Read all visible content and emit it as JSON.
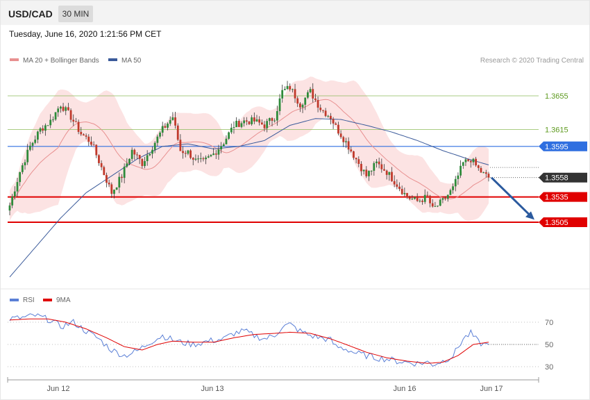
{
  "header": {
    "pair": "USD/CAD",
    "timeframe": "30 MIN",
    "datetime": "Tuesday, June 16, 2020 1:21:56 PM CET"
  },
  "legend": {
    "ma20_label": "MA 20 + Bollinger Bands",
    "ma50_label": "MA 50",
    "credit": "Research © 2020 Trading Central",
    "rsi_label": "RSI",
    "rsi_ma_label": "9MA"
  },
  "colors": {
    "bull": "#2e8b3a",
    "bear": "#c0392b",
    "band_fill": "#fbdada",
    "ma20": "#e89090",
    "ma50": "#3a5a9a",
    "resistance": "#8dbb5a",
    "pivot": "#2f6fe0",
    "support": "#e00000",
    "current": "#333333",
    "arrow": "#2b5a9e",
    "rsi": "#5a7fd6",
    "rsi_ma": "#e00000"
  },
  "chart_data": [
    {
      "type": "candlestick",
      "price_range": [
        1.342,
        1.37
      ],
      "x_ticks": [
        "Jun 12",
        "Jun 13",
        "Jun 16",
        "Jun 17"
      ],
      "levels": [
        {
          "label": "1.3655",
          "value": 1.3655,
          "kind": "resistance"
        },
        {
          "label": "1.3615",
          "value": 1.3615,
          "kind": "resistance"
        },
        {
          "label": "1.3595",
          "value": 1.3595,
          "kind": "pivot"
        },
        {
          "label": "1.3558",
          "value": 1.3558,
          "kind": "current"
        },
        {
          "label": "1.3535",
          "value": 1.3535,
          "kind": "support"
        },
        {
          "label": "1.3505",
          "value": 1.3505,
          "kind": "support"
        }
      ],
      "close_anchors": [
        [
          0,
          1.3525
        ],
        [
          4,
          1.3565
        ],
        [
          8,
          1.3595
        ],
        [
          12,
          1.3615
        ],
        [
          16,
          1.3625
        ],
        [
          20,
          1.3645
        ],
        [
          24,
          1.363
        ],
        [
          28,
          1.361
        ],
        [
          32,
          1.36
        ],
        [
          36,
          1.357
        ],
        [
          40,
          1.354
        ],
        [
          44,
          1.356
        ],
        [
          48,
          1.359
        ],
        [
          52,
          1.3575
        ],
        [
          56,
          1.3595
        ],
        [
          60,
          1.3615
        ],
        [
          64,
          1.363
        ],
        [
          67,
          1.359
        ],
        [
          70,
          1.3588
        ],
        [
          73,
          1.3578
        ],
        [
          76,
          1.3576
        ],
        [
          80,
          1.3586
        ],
        [
          84,
          1.36
        ],
        [
          88,
          1.362
        ],
        [
          92,
          1.3625
        ],
        [
          96,
          1.3625
        ],
        [
          100,
          1.362
        ],
        [
          104,
          1.363
        ],
        [
          107,
          1.366
        ],
        [
          110,
          1.3665
        ],
        [
          114,
          1.3645
        ],
        [
          118,
          1.366
        ],
        [
          122,
          1.364
        ],
        [
          126,
          1.363
        ],
        [
          128,
          1.3618
        ],
        [
          132,
          1.36
        ],
        [
          136,
          1.358
        ],
        [
          140,
          1.356
        ],
        [
          144,
          1.3575
        ],
        [
          148,
          1.3565
        ],
        [
          152,
          1.355
        ],
        [
          156,
          1.3535
        ],
        [
          160,
          1.353
        ],
        [
          164,
          1.3535
        ],
        [
          166,
          1.352
        ],
        [
          170,
          1.353
        ],
        [
          174,
          1.3545
        ],
        [
          178,
          1.3575
        ],
        [
          181,
          1.358
        ],
        [
          184,
          1.3568
        ],
        [
          186,
          1.3562
        ],
        [
          188,
          1.3558
        ]
      ],
      "ma50_anchors": [
        [
          0,
          1.344
        ],
        [
          10,
          1.3475
        ],
        [
          20,
          1.351
        ],
        [
          30,
          1.354
        ],
        [
          40,
          1.356
        ],
        [
          50,
          1.358
        ],
        [
          60,
          1.3595
        ],
        [
          70,
          1.3598
        ],
        [
          80,
          1.3592
        ],
        [
          90,
          1.3595
        ],
        [
          100,
          1.3602
        ],
        [
          110,
          1.362
        ],
        [
          120,
          1.3628
        ],
        [
          130,
          1.3627
        ],
        [
          140,
          1.362
        ],
        [
          150,
          1.3612
        ],
        [
          160,
          1.3602
        ],
        [
          170,
          1.359
        ],
        [
          180,
          1.358
        ],
        [
          188,
          1.3573
        ]
      ]
    },
    {
      "type": "line",
      "series_names": [
        "RSI",
        "9MA"
      ],
      "y_range": [
        20,
        80
      ],
      "y_ticks": [
        30,
        50,
        70
      ],
      "rsi_anchors": [
        [
          0,
          73
        ],
        [
          5,
          74
        ],
        [
          10,
          76
        ],
        [
          16,
          72
        ],
        [
          20,
          66
        ],
        [
          25,
          70
        ],
        [
          30,
          62
        ],
        [
          35,
          55
        ],
        [
          40,
          45
        ],
        [
          45,
          40
        ],
        [
          50,
          44
        ],
        [
          55,
          52
        ],
        [
          60,
          58
        ],
        [
          64,
          54
        ],
        [
          67,
          52
        ],
        [
          72,
          50
        ],
        [
          78,
          53
        ],
        [
          84,
          55
        ],
        [
          88,
          60
        ],
        [
          92,
          62
        ],
        [
          96,
          58
        ],
        [
          100,
          55
        ],
        [
          104,
          58
        ],
        [
          107,
          66
        ],
        [
          110,
          68
        ],
        [
          114,
          62
        ],
        [
          118,
          58
        ],
        [
          122,
          56
        ],
        [
          126,
          54
        ],
        [
          128,
          48
        ],
        [
          132,
          46
        ],
        [
          136,
          42
        ],
        [
          140,
          40
        ],
        [
          144,
          38
        ],
        [
          148,
          37
        ],
        [
          152,
          35
        ],
        [
          156,
          34
        ],
        [
          160,
          33
        ],
        [
          164,
          34
        ],
        [
          166,
          32
        ],
        [
          170,
          35
        ],
        [
          174,
          40
        ],
        [
          178,
          55
        ],
        [
          181,
          60
        ],
        [
          184,
          52
        ],
        [
          186,
          50
        ],
        [
          188,
          50
        ]
      ],
      "rsi_ma_anchors": [
        [
          0,
          72
        ],
        [
          8,
          73
        ],
        [
          15,
          73
        ],
        [
          22,
          70
        ],
        [
          30,
          64
        ],
        [
          38,
          56
        ],
        [
          45,
          48
        ],
        [
          52,
          45
        ],
        [
          58,
          50
        ],
        [
          64,
          53
        ],
        [
          72,
          52
        ],
        [
          80,
          52
        ],
        [
          88,
          56
        ],
        [
          96,
          59
        ],
        [
          104,
          60
        ],
        [
          110,
          61
        ],
        [
          118,
          60
        ],
        [
          126,
          55
        ],
        [
          132,
          50
        ],
        [
          140,
          43
        ],
        [
          148,
          38
        ],
        [
          156,
          35
        ],
        [
          164,
          33
        ],
        [
          170,
          34
        ],
        [
          176,
          40
        ],
        [
          182,
          50
        ],
        [
          188,
          52
        ]
      ]
    }
  ]
}
